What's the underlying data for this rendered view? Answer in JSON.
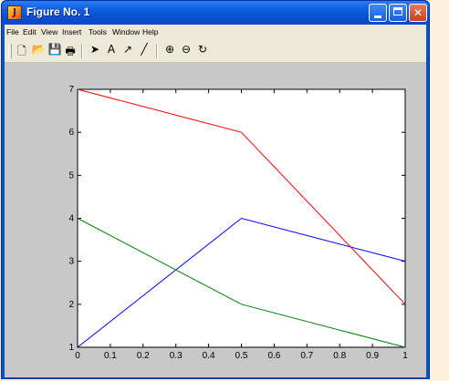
{
  "window": {
    "title": "Figure No. 1",
    "app_icon_glyph": "J",
    "controls": {
      "minimize": "minimize-icon",
      "maximize": "maximize-icon",
      "close": "✕"
    }
  },
  "menu": {
    "items": [
      "File",
      "Edit",
      "View",
      "Insert",
      "Tools",
      "Window",
      "Help"
    ]
  },
  "toolbar": {
    "buttons": [
      {
        "name": "new-figure-icon",
        "glyph": "🗋"
      },
      {
        "name": "open-file-icon",
        "glyph": "📂"
      },
      {
        "name": "save-icon",
        "glyph": "💾"
      },
      {
        "name": "print-icon",
        "glyph": "🖶"
      },
      {
        "name": "edit-plot-arrow-icon",
        "glyph": "➤"
      },
      {
        "name": "insert-text-icon",
        "glyph": "A"
      },
      {
        "name": "insert-arrow-icon",
        "glyph": "↗"
      },
      {
        "name": "insert-line-icon",
        "glyph": "╱"
      },
      {
        "name": "zoom-in-icon",
        "glyph": "⊕"
      },
      {
        "name": "zoom-out-icon",
        "glyph": "⊖"
      },
      {
        "name": "rotate-3d-icon",
        "glyph": "↻"
      }
    ]
  },
  "chart_data": {
    "type": "line",
    "x": [
      0,
      0.5,
      1
    ],
    "series": [
      {
        "color": "#0000ff",
        "values": [
          1,
          4,
          3
        ]
      },
      {
        "color": "#008000",
        "values": [
          4,
          2,
          1
        ]
      },
      {
        "color": "#ff0000",
        "values": [
          7,
          6,
          2
        ]
      }
    ],
    "xlim": [
      0,
      1
    ],
    "ylim": [
      1,
      7
    ],
    "xticks": [
      "0",
      "0.1",
      "0.2",
      "0.3",
      "0.4",
      "0.5",
      "0.6",
      "0.7",
      "0.8",
      "0.9",
      "1"
    ],
    "yticks": [
      "1",
      "2",
      "3",
      "4",
      "5",
      "6",
      "7"
    ],
    "title": "",
    "xlabel": "",
    "ylabel": "",
    "grid": false
  }
}
